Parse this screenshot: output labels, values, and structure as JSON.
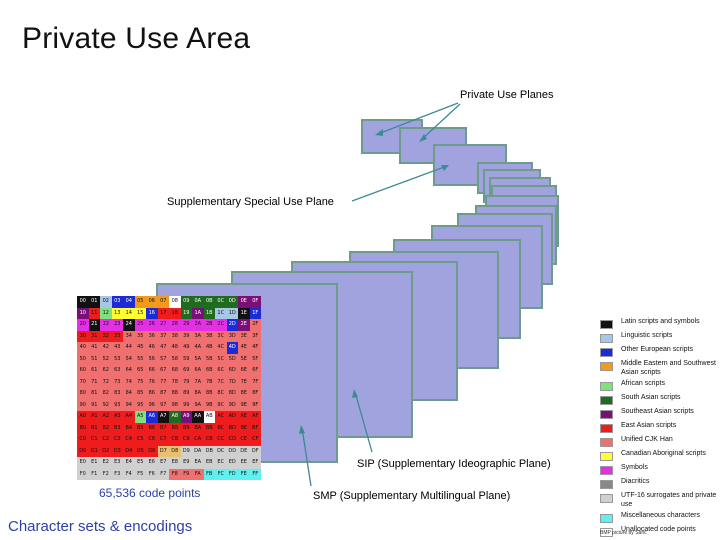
{
  "title": "Private Use Area",
  "labels": {
    "private_use_planes": "Private Use Planes",
    "ssp": "Supplementary Special Use Plane",
    "sip": "SIP (Supplementary Ideographic Plane)",
    "smp": "SMP (Supplementary Multilingual Plane)"
  },
  "bmp": {
    "codepoints_text": "65,536 code points",
    "cells": [
      [
        "00",
        "01",
        "02",
        "03",
        "04",
        "05",
        "06",
        "07",
        "08",
        "09",
        "0A",
        "0B",
        "0C",
        "0D",
        "0E",
        "0F"
      ],
      [
        "10",
        "11",
        "12",
        "13",
        "14",
        "15",
        "16",
        "17",
        "18",
        "19",
        "1A",
        "1B",
        "1C",
        "1D",
        "1E",
        "1F"
      ],
      [
        "20",
        "21",
        "22",
        "23",
        "24",
        "25",
        "26",
        "27",
        "28",
        "29",
        "2A",
        "2B",
        "2C",
        "2D",
        "2E",
        "2F"
      ],
      [
        "30",
        "31",
        "32",
        "33",
        "34",
        "35",
        "36",
        "37",
        "38",
        "39",
        "3A",
        "3B",
        "3C",
        "3D",
        "3E",
        "3F"
      ],
      [
        "40",
        "41",
        "42",
        "43",
        "44",
        "45",
        "46",
        "47",
        "48",
        "49",
        "4A",
        "4B",
        "4C",
        "4D",
        "4E",
        "4F"
      ],
      [
        "50",
        "51",
        "52",
        "53",
        "54",
        "55",
        "56",
        "57",
        "58",
        "59",
        "5A",
        "5B",
        "5C",
        "5D",
        "5E",
        "5F"
      ],
      [
        "60",
        "61",
        "62",
        "63",
        "64",
        "65",
        "66",
        "67",
        "68",
        "69",
        "6A",
        "6B",
        "6C",
        "6D",
        "6E",
        "6F"
      ],
      [
        "70",
        "71",
        "72",
        "73",
        "74",
        "75",
        "76",
        "77",
        "78",
        "79",
        "7A",
        "7B",
        "7C",
        "7D",
        "7E",
        "7F"
      ],
      [
        "80",
        "81",
        "82",
        "83",
        "84",
        "85",
        "86",
        "87",
        "88",
        "89",
        "8A",
        "8B",
        "8C",
        "8D",
        "8E",
        "8F"
      ],
      [
        "90",
        "91",
        "92",
        "93",
        "94",
        "95",
        "96",
        "97",
        "98",
        "99",
        "9A",
        "9B",
        "9C",
        "9D",
        "9E",
        "9F"
      ],
      [
        "A0",
        "A1",
        "A2",
        "A3",
        "A4",
        "A5",
        "A6",
        "A7",
        "A8",
        "A9",
        "AA",
        "AB",
        "AC",
        "AD",
        "AE",
        "AF"
      ],
      [
        "B0",
        "B1",
        "B2",
        "B3",
        "B4",
        "B5",
        "B6",
        "B7",
        "B8",
        "B9",
        "BA",
        "BB",
        "BC",
        "BD",
        "BE",
        "BF"
      ],
      [
        "C0",
        "C1",
        "C2",
        "C3",
        "C4",
        "C5",
        "C6",
        "C7",
        "C8",
        "C9",
        "CA",
        "CB",
        "CC",
        "CD",
        "CE",
        "CF"
      ],
      [
        "D0",
        "D1",
        "D2",
        "D3",
        "D4",
        "D5",
        "D6",
        "D7",
        "D8",
        "D9",
        "DA",
        "DB",
        "DC",
        "DD",
        "DE",
        "DF"
      ],
      [
        "E0",
        "E1",
        "E2",
        "E3",
        "E4",
        "E5",
        "E6",
        "E7",
        "E8",
        "E9",
        "EA",
        "EB",
        "EC",
        "ED",
        "EE",
        "EF"
      ],
      [
        "F0",
        "F1",
        "F2",
        "F3",
        "F4",
        "F5",
        "F6",
        "F7",
        "F8",
        "F9",
        "FA",
        "FB",
        "FC",
        "FD",
        "FE",
        "FF"
      ]
    ],
    "colors": [
      [
        "#111111",
        "#111111",
        "#a7c7e7",
        "#1b2bd6",
        "#1b2bd6",
        "#f39a1c",
        "#f39a1c",
        "#f39a1c",
        "#ffffff",
        "#1f6b1f",
        "#1f6b1f",
        "#1f6b1f",
        "#1f6b1f",
        "#1f6b1f",
        "#7a0f7a",
        "#7a0f7a"
      ],
      [
        "#7a0f7a",
        "#ee1c1c",
        "#7fe07f",
        "#ffff33",
        "#ffff33",
        "#ffff33",
        "#1b2bd6",
        "#ee1c1c",
        "#ee1c1c",
        "#1f6b1f",
        "#7a0f7a",
        "#1f6b1f",
        "#a7c7e7",
        "#a7c7e7",
        "#111111",
        "#1b2bd6"
      ],
      [
        "#e62ee6",
        "#111111",
        "#e62ee6",
        "#e62ee6",
        "#111111",
        "#e62ee6",
        "#e62ee6",
        "#e62ee6",
        "#e62ee6",
        "#e62ee6",
        "#e62ee6",
        "#e62ee6",
        "#e62ee6",
        "#1b2bd6",
        "#7a0f7a",
        "#f07070"
      ],
      [
        "#ee1c1c",
        "#ee1c1c",
        "#ee1c1c",
        "#ee1c1c",
        "#f07070",
        "#f07070",
        "#f07070",
        "#f07070",
        "#f07070",
        "#f07070",
        "#f07070",
        "#f07070",
        "#f07070",
        "#f07070",
        "#f07070",
        "#f07070"
      ],
      [
        "#f07070",
        "#f07070",
        "#f07070",
        "#f07070",
        "#f07070",
        "#f07070",
        "#f07070",
        "#f07070",
        "#f07070",
        "#f07070",
        "#f07070",
        "#f07070",
        "#f07070",
        "#1b2bd6",
        "#f07070",
        "#f07070"
      ],
      [
        "#f07070",
        "#f07070",
        "#f07070",
        "#f07070",
        "#f07070",
        "#f07070",
        "#f07070",
        "#f07070",
        "#f07070",
        "#f07070",
        "#f07070",
        "#f07070",
        "#f07070",
        "#f07070",
        "#f07070",
        "#f07070"
      ],
      [
        "#f07070",
        "#f07070",
        "#f07070",
        "#f07070",
        "#f07070",
        "#f07070",
        "#f07070",
        "#f07070",
        "#f07070",
        "#f07070",
        "#f07070",
        "#f07070",
        "#f07070",
        "#f07070",
        "#f07070",
        "#f07070"
      ],
      [
        "#f07070",
        "#f07070",
        "#f07070",
        "#f07070",
        "#f07070",
        "#f07070",
        "#f07070",
        "#f07070",
        "#f07070",
        "#f07070",
        "#f07070",
        "#f07070",
        "#f07070",
        "#f07070",
        "#f07070",
        "#f07070"
      ],
      [
        "#f07070",
        "#f07070",
        "#f07070",
        "#f07070",
        "#f07070",
        "#f07070",
        "#f07070",
        "#f07070",
        "#f07070",
        "#f07070",
        "#f07070",
        "#f07070",
        "#f07070",
        "#f07070",
        "#f07070",
        "#f07070"
      ],
      [
        "#f07070",
        "#f07070",
        "#f07070",
        "#f07070",
        "#f07070",
        "#f07070",
        "#f07070",
        "#f07070",
        "#f07070",
        "#f07070",
        "#f07070",
        "#f07070",
        "#f07070",
        "#f07070",
        "#f07070",
        "#f07070"
      ],
      [
        "#ee1c1c",
        "#ee1c1c",
        "#ee1c1c",
        "#ee1c1c",
        "#ee1c1c",
        "#7fe07f",
        "#1b2bd6",
        "#111111",
        "#1f6b1f",
        "#7a0f7a",
        "#111111",
        "#ffffff",
        "#ee1c1c",
        "#ee1c1c",
        "#ee1c1c",
        "#ee1c1c"
      ],
      [
        "#ee1c1c",
        "#ee1c1c",
        "#ee1c1c",
        "#ee1c1c",
        "#ee1c1c",
        "#ee1c1c",
        "#ee1c1c",
        "#ee1c1c",
        "#ee1c1c",
        "#ee1c1c",
        "#ee1c1c",
        "#ee1c1c",
        "#ee1c1c",
        "#ee1c1c",
        "#ee1c1c",
        "#ee1c1c"
      ],
      [
        "#ee1c1c",
        "#ee1c1c",
        "#ee1c1c",
        "#ee1c1c",
        "#ee1c1c",
        "#ee1c1c",
        "#ee1c1c",
        "#ee1c1c",
        "#ee1c1c",
        "#ee1c1c",
        "#ee1c1c",
        "#ee1c1c",
        "#ee1c1c",
        "#ee1c1c",
        "#ee1c1c",
        "#ee1c1c"
      ],
      [
        "#ee1c1c",
        "#ee1c1c",
        "#ee1c1c",
        "#ee1c1c",
        "#ee1c1c",
        "#ee1c1c",
        "#ee1c1c",
        "#e8c070",
        "#e8c070",
        "#d0d0d0",
        "#d0d0d0",
        "#d0d0d0",
        "#d0d0d0",
        "#d0d0d0",
        "#d0d0d0",
        "#d0d0d0"
      ],
      [
        "#d0d0d0",
        "#d0d0d0",
        "#d0d0d0",
        "#d0d0d0",
        "#d0d0d0",
        "#d0d0d0",
        "#d0d0d0",
        "#d0d0d0",
        "#d0d0d0",
        "#d0d0d0",
        "#d0d0d0",
        "#d0d0d0",
        "#d0d0d0",
        "#d0d0d0",
        "#d0d0d0",
        "#d0d0d0"
      ],
      [
        "#d0d0d0",
        "#d0d0d0",
        "#d0d0d0",
        "#d0d0d0",
        "#d0d0d0",
        "#d0d0d0",
        "#d0d0d0",
        "#d0d0d0",
        "#f07070",
        "#f07070",
        "#f07070",
        "#5ff0f0",
        "#5ff0f0",
        "#5ff0f0",
        "#5ff0f0",
        "#5ff0f0"
      ]
    ]
  },
  "legend": [
    {
      "label": "Latin scripts and symbols",
      "color": "#111111"
    },
    {
      "label": "Linguistic scripts",
      "color": "#a7c7e7"
    },
    {
      "label": "Other European scripts",
      "color": "#1b2bd6"
    },
    {
      "label": "Middle Eastern and Southwest Asian scripts",
      "color": "#f39a1c"
    },
    {
      "label": "African scripts",
      "color": "#7fe07f"
    },
    {
      "label": "South Asian scripts",
      "color": "#1f6b1f"
    },
    {
      "label": "Southeast Asian scripts",
      "color": "#7a0f7a"
    },
    {
      "label": "East Asian scripts",
      "color": "#ee1c1c"
    },
    {
      "label": "Unified CJK Han",
      "color": "#f07070"
    },
    {
      "label": "Canadian Aboriginal scripts",
      "color": "#ffff33"
    },
    {
      "label": "Symbols",
      "color": "#e62ee6"
    },
    {
      "label": "Diacritics",
      "color": "#888888"
    },
    {
      "label": "UTF-16 surrogates and private use",
      "color": "#d0d0d0"
    },
    {
      "label": "Miscellaneous characters",
      "color": "#5ff0f0"
    },
    {
      "label": "Unallocated code points",
      "color": "#ffffff"
    }
  ],
  "credit": "BMP picture by Saric",
  "footer": "Character sets & encodings"
}
